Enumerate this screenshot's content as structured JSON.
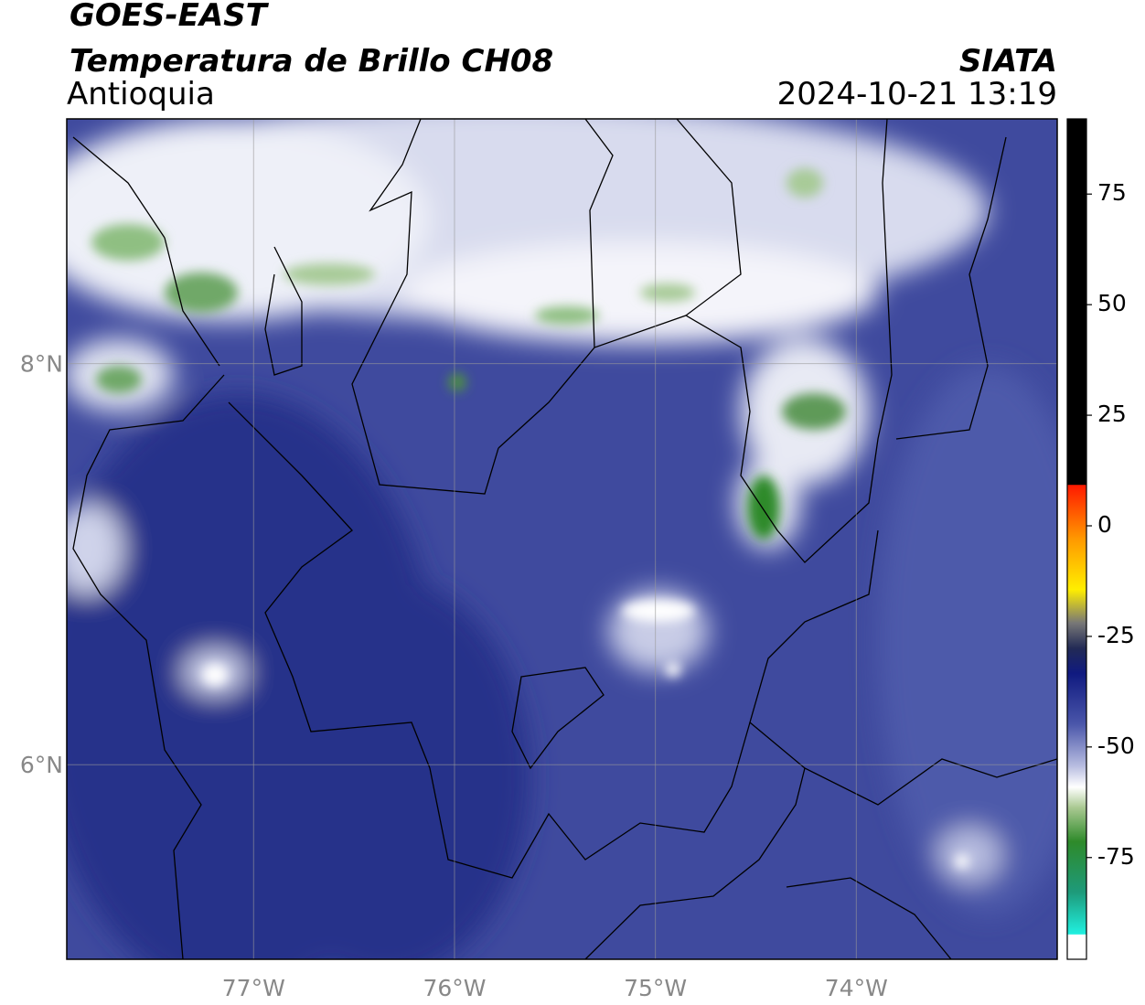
{
  "map": {
    "title": "GOES-EAST",
    "subtitle": "Temperatura de Brillo CH08",
    "region": "Antioquia",
    "source": "SIATA",
    "datetime": "2024-10-21 13:19",
    "xlim": [
      -77.93,
      -73.0
    ],
    "ylim": [
      5.03,
      9.22
    ],
    "xticks": [
      {
        "value": -77,
        "label": "77°W"
      },
      {
        "value": -76,
        "label": "76°W"
      },
      {
        "value": -75,
        "label": "75°W"
      },
      {
        "value": -74,
        "label": "74°W"
      }
    ],
    "yticks": [
      {
        "value": 8,
        "label": "8°N"
      },
      {
        "value": 6,
        "label": "6°N"
      }
    ],
    "grid": true
  },
  "colorbar": {
    "lim": [
      -98,
      92
    ],
    "ticks": [
      75,
      50,
      25,
      0,
      -25,
      -50,
      -75
    ]
  }
}
